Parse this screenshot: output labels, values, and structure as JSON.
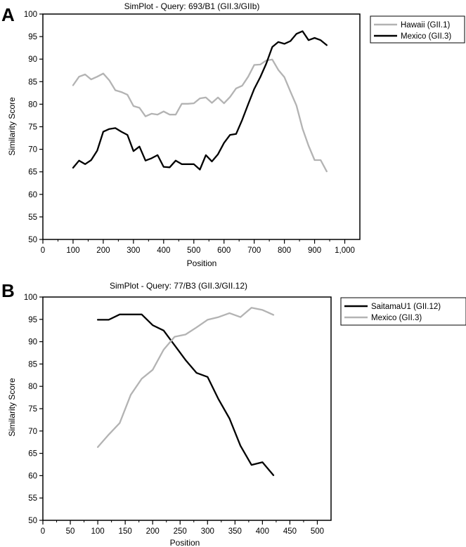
{
  "panels": [
    "A",
    "B"
  ],
  "chart_data": [
    {
      "type": "line",
      "title": "SimPlot - Query: 693/B1 (GII.3/GIIb)",
      "xlabel": "Position",
      "ylabel": "Similarity Score",
      "xlim": [
        0,
        1050
      ],
      "ylim": [
        50,
        100
      ],
      "xticks": [
        0,
        100,
        200,
        300,
        400,
        500,
        600,
        700,
        800,
        900,
        1000
      ],
      "xtick_labels": [
        "0",
        "100",
        "200",
        "300",
        "400",
        "500",
        "600",
        "700",
        "800",
        "900",
        "1,000"
      ],
      "yticks": [
        50,
        55,
        60,
        65,
        70,
        75,
        80,
        85,
        90,
        95,
        100
      ],
      "grid": false,
      "legend": "top-right outside",
      "series": [
        {
          "name": "Hawaii (GII.1)",
          "color": "#b3b3b3",
          "x": [
            100,
            120,
            140,
            160,
            180,
            200,
            220,
            240,
            260,
            280,
            300,
            320,
            340,
            360,
            380,
            400,
            420,
            440,
            460,
            480,
            500,
            520,
            540,
            560,
            580,
            600,
            620,
            640,
            660,
            680,
            700,
            720,
            740,
            760,
            780,
            800,
            820,
            840,
            860,
            880,
            900,
            920,
            940
          ],
          "values": [
            84.2,
            86.1,
            86.6,
            85.5,
            86.1,
            86.8,
            85.3,
            83.1,
            82.7,
            82.1,
            79.6,
            79.2,
            77.3,
            77.9,
            77.7,
            78.4,
            77.7,
            77.7,
            80.1,
            80.1,
            80.2,
            81.3,
            81.5,
            80.3,
            81.5,
            80.2,
            81.6,
            83.5,
            84.1,
            86.1,
            88.7,
            88.8,
            89.7,
            89.9,
            87.6,
            86.0,
            82.8,
            79.7,
            74.6,
            70.8,
            67.6,
            67.6,
            65.1
          ]
        },
        {
          "name": "Mexico (GII.3)",
          "color": "#000000",
          "x": [
            100,
            120,
            140,
            160,
            180,
            200,
            220,
            240,
            260,
            280,
            300,
            320,
            340,
            360,
            380,
            400,
            420,
            440,
            460,
            480,
            500,
            520,
            540,
            560,
            580,
            600,
            620,
            640,
            660,
            680,
            700,
            720,
            740,
            760,
            780,
            800,
            820,
            840,
            860,
            880,
            900,
            920,
            940
          ],
          "values": [
            65.9,
            67.5,
            66.7,
            67.6,
            69.7,
            73.9,
            74.5,
            74.7,
            73.9,
            73.2,
            69.6,
            70.6,
            67.5,
            68.0,
            68.7,
            66.1,
            66.0,
            67.5,
            66.7,
            66.7,
            66.7,
            65.5,
            68.7,
            67.3,
            68.9,
            71.4,
            73.2,
            73.4,
            76.5,
            80.0,
            83.4,
            86.0,
            89.0,
            92.7,
            93.8,
            93.4,
            94.0,
            95.6,
            96.2,
            94.2,
            94.7,
            94.2,
            93.1
          ]
        }
      ]
    },
    {
      "type": "line",
      "title": "SimPlot - Query: 77/B3 (GII.3/GII.12)",
      "xlabel": "Position",
      "ylabel": "Similarity Score",
      "xlim": [
        0,
        525
      ],
      "ylim": [
        50,
        100
      ],
      "xticks": [
        0,
        50,
        100,
        150,
        200,
        250,
        300,
        350,
        400,
        450,
        500
      ],
      "xtick_labels": [
        "0",
        "50",
        "100",
        "150",
        "200",
        "250",
        "300",
        "350",
        "400",
        "450",
        "500"
      ],
      "yticks": [
        50,
        55,
        60,
        65,
        70,
        75,
        80,
        85,
        90,
        95,
        100
      ],
      "grid": false,
      "legend": "top-right outside",
      "series": [
        {
          "name": "SaitamaU1 (GII.12)",
          "color": "#000000",
          "x": [
            100,
            120,
            140,
            160,
            180,
            200,
            220,
            240,
            260,
            280,
            300,
            320,
            340,
            360,
            380,
            400,
            420
          ],
          "values": [
            94.9,
            94.9,
            96.1,
            96.1,
            96.1,
            93.7,
            92.5,
            89.2,
            85.9,
            83.0,
            82.1,
            77.1,
            72.8,
            66.7,
            62.4,
            63.0,
            60.1
          ]
        },
        {
          "name": "Mexico (GII.3)",
          "color": "#b3b3b3",
          "x": [
            100,
            120,
            140,
            160,
            180,
            200,
            220,
            240,
            260,
            280,
            300,
            320,
            340,
            360,
            380,
            400,
            420
          ],
          "values": [
            66.4,
            69.2,
            71.8,
            78.1,
            81.7,
            83.7,
            88.2,
            91.1,
            91.6,
            93.2,
            94.9,
            95.5,
            96.4,
            95.5,
            97.6,
            97.1,
            96.0
          ]
        }
      ]
    }
  ]
}
